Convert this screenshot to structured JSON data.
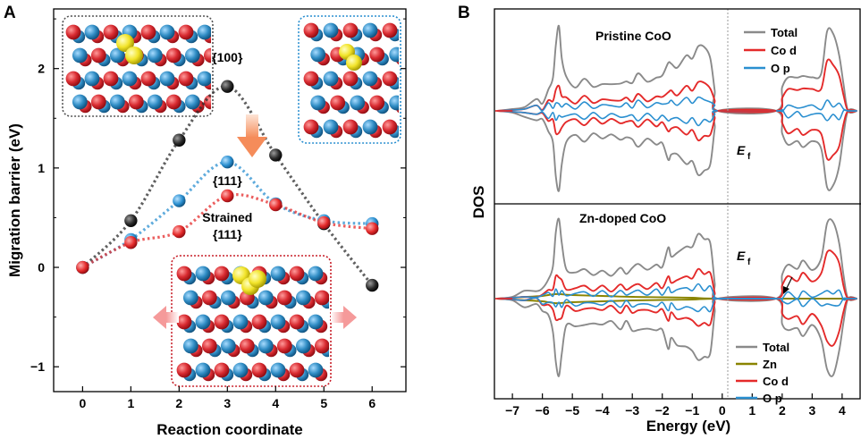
{
  "colors": {
    "black": "#2a2a2a",
    "blue": "#2a8fd0",
    "red": "#e42a2a",
    "gray": "#8a8a8a",
    "olive": "#8a8400",
    "oxygen": "#d82a30",
    "cobalt": "#2f8cc4",
    "lithium": "#f2e42a",
    "arrow_orange": "#f5a070",
    "arrow_pink": "#f7b2b2"
  },
  "chart_data": [
    {
      "panel": "A",
      "type": "line",
      "xlabel": "Reaction coordinate",
      "ylabel": "Migration barrier (eV)",
      "xlim": [
        -0.6,
        6.7
      ],
      "ylim": [
        -1.25,
        2.6
      ],
      "xticks": [
        "0",
        "1",
        "2",
        "3",
        "4",
        "5",
        "6"
      ],
      "yticks": [
        "-1",
        "0",
        "1",
        "2"
      ],
      "ytick_labels": [
        "−1",
        "0",
        "1",
        "2"
      ],
      "x": [
        0,
        1,
        2,
        3,
        4,
        5,
        6
      ],
      "series": [
        {
          "key": "s100",
          "color": "black",
          "values": [
            0.0,
            0.47,
            1.28,
            1.82,
            1.13,
            0.44,
            -0.18
          ]
        },
        {
          "key": "s111",
          "color": "blue",
          "values": [
            0.0,
            0.28,
            0.67,
            1.06,
            0.64,
            0.47,
            0.44
          ]
        },
        {
          "key": "strained",
          "color": "red",
          "values": [
            0.0,
            0.25,
            0.36,
            0.72,
            0.63,
            0.45,
            0.39
          ]
        }
      ],
      "annotations": [
        {
          "text": "{100}",
          "x": 3,
          "y": 2.07
        },
        {
          "text": "{111}",
          "x": 3,
          "y": 0.83
        },
        {
          "text": "Strained",
          "x": 3,
          "y": 0.46
        },
        {
          "text": "{111}",
          "x": 3,
          "y": 0.29
        }
      ]
    },
    {
      "panel": "B",
      "type": "area",
      "xlabel": "Energy (eV)",
      "ylabel": "DOS",
      "xlim": [
        -7.6,
        4.6
      ],
      "xticks": [
        "-7",
        "-6",
        "-5",
        "-4",
        "-3",
        "-2",
        "-1",
        "0",
        "1",
        "2",
        "3",
        "4"
      ],
      "xtick_labels": [
        "−7",
        "−6",
        "−5",
        "−4",
        "−3",
        "−2",
        "−1",
        "0",
        "1",
        "2",
        "3",
        "4"
      ],
      "fermi_label": "E",
      "fermi_subscript": "f",
      "facets": [
        {
          "title": "Pristine CoO",
          "legend": [
            {
              "label": "Total",
              "color": "gray"
            },
            {
              "label": "Co d",
              "color": "red"
            },
            {
              "label": "O p",
              "color": "blue"
            }
          ]
        },
        {
          "title": "Zn-doped CoO",
          "legend": [
            {
              "label": "Total",
              "color": "gray"
            },
            {
              "label": "Zn",
              "color": "olive"
            },
            {
              "label": "Co d",
              "color": "red"
            },
            {
              "label": "O p",
              "color": "blue"
            }
          ]
        }
      ],
      "profiles": {
        "total": [
          [
            -7.5,
            0
          ],
          [
            -7.0,
            0.02
          ],
          [
            -6.6,
            0.06
          ],
          [
            -6.2,
            0.1
          ],
          [
            -6.0,
            0.12
          ],
          [
            -5.8,
            0.2
          ],
          [
            -5.65,
            0.4
          ],
          [
            -5.55,
            0.72
          ],
          [
            -5.45,
            0.95
          ],
          [
            -5.35,
            0.6
          ],
          [
            -5.2,
            0.35
          ],
          [
            -4.9,
            0.3
          ],
          [
            -4.6,
            0.32
          ],
          [
            -4.3,
            0.3
          ],
          [
            -4.0,
            0.28
          ],
          [
            -3.7,
            0.3
          ],
          [
            -3.4,
            0.32
          ],
          [
            -3.2,
            0.3
          ],
          [
            -3.0,
            0.35
          ],
          [
            -2.8,
            0.38
          ],
          [
            -2.5,
            0.36
          ],
          [
            -2.2,
            0.35
          ],
          [
            -2.0,
            0.4
          ],
          [
            -1.8,
            0.55
          ],
          [
            -1.7,
            0.5
          ],
          [
            -1.5,
            0.52
          ],
          [
            -1.2,
            0.58
          ],
          [
            -1.0,
            0.62
          ],
          [
            -0.8,
            0.7
          ],
          [
            -0.6,
            0.72
          ],
          [
            -0.4,
            0.6
          ],
          [
            -0.25,
            0.2
          ],
          [
            -0.15,
            0
          ],
          [
            1.8,
            0
          ],
          [
            2.0,
            0.3
          ],
          [
            2.2,
            0.35
          ],
          [
            2.5,
            0.38
          ],
          [
            2.7,
            0.4
          ],
          [
            3.0,
            0.35
          ],
          [
            3.3,
            0.45
          ],
          [
            3.5,
            0.85
          ],
          [
            3.7,
            0.9
          ],
          [
            3.9,
            0.6
          ],
          [
            4.05,
            0.3
          ],
          [
            4.2,
            0
          ],
          [
            4.5,
            0
          ]
        ],
        "cod": [
          [
            -7.5,
            0
          ],
          [
            -7.0,
            0.01
          ],
          [
            -6.6,
            0.02
          ],
          [
            -6.2,
            0.03
          ],
          [
            -6.0,
            0.05
          ],
          [
            -5.8,
            0.08
          ],
          [
            -5.65,
            0.14
          ],
          [
            -5.55,
            0.22
          ],
          [
            -5.45,
            0.28
          ],
          [
            -5.35,
            0.18
          ],
          [
            -5.2,
            0.12
          ],
          [
            -4.9,
            0.12
          ],
          [
            -4.6,
            0.13
          ],
          [
            -4.3,
            0.12
          ],
          [
            -4.0,
            0.11
          ],
          [
            -3.7,
            0.12
          ],
          [
            -3.4,
            0.13
          ],
          [
            -3.2,
            0.12
          ],
          [
            -3.0,
            0.14
          ],
          [
            -2.8,
            0.15
          ],
          [
            -2.5,
            0.14
          ],
          [
            -2.2,
            0.14
          ],
          [
            -2.0,
            0.16
          ],
          [
            -1.8,
            0.22
          ],
          [
            -1.7,
            0.2
          ],
          [
            -1.5,
            0.21
          ],
          [
            -1.2,
            0.24
          ],
          [
            -1.0,
            0.26
          ],
          [
            -0.8,
            0.3
          ],
          [
            -0.6,
            0.32
          ],
          [
            -0.4,
            0.26
          ],
          [
            -0.25,
            0.09
          ],
          [
            -0.15,
            0
          ],
          [
            1.8,
            0
          ],
          [
            2.0,
            0.18
          ],
          [
            2.2,
            0.22
          ],
          [
            2.5,
            0.24
          ],
          [
            2.7,
            0.26
          ],
          [
            3.0,
            0.22
          ],
          [
            3.3,
            0.28
          ],
          [
            3.5,
            0.52
          ],
          [
            3.7,
            0.55
          ],
          [
            3.9,
            0.37
          ],
          [
            4.05,
            0.18
          ],
          [
            4.2,
            0
          ],
          [
            4.5,
            0
          ]
        ],
        "op": [
          [
            -7.5,
            0
          ],
          [
            -7.0,
            0.01
          ],
          [
            -6.6,
            0.02
          ],
          [
            -6.2,
            0.03
          ],
          [
            -6.0,
            0.04
          ],
          [
            -5.8,
            0.05
          ],
          [
            -5.65,
            0.06
          ],
          [
            -5.55,
            0.07
          ],
          [
            -5.45,
            0.08
          ],
          [
            -5.35,
            0.06
          ],
          [
            -5.2,
            0.05
          ],
          [
            -4.9,
            0.06
          ],
          [
            -4.6,
            0.06
          ],
          [
            -4.3,
            0.06
          ],
          [
            -4.0,
            0.05
          ],
          [
            -3.7,
            0.06
          ],
          [
            -3.4,
            0.06
          ],
          [
            -3.2,
            0.06
          ],
          [
            -3.0,
            0.07
          ],
          [
            -2.8,
            0.08
          ],
          [
            -2.5,
            0.07
          ],
          [
            -2.2,
            0.07
          ],
          [
            -2.0,
            0.08
          ],
          [
            -1.8,
            0.1
          ],
          [
            -1.7,
            0.09
          ],
          [
            -1.5,
            0.1
          ],
          [
            -1.2,
            0.11
          ],
          [
            -1.0,
            0.12
          ],
          [
            -0.8,
            0.13
          ],
          [
            -0.6,
            0.13
          ],
          [
            -0.4,
            0.11
          ],
          [
            -0.25,
            0.04
          ],
          [
            -0.15,
            0
          ],
          [
            1.8,
            0
          ],
          [
            2.0,
            0.03
          ],
          [
            2.2,
            0.04
          ],
          [
            2.5,
            0.04
          ],
          [
            2.7,
            0.05
          ],
          [
            3.0,
            0.04
          ],
          [
            3.3,
            0.05
          ],
          [
            3.5,
            0.08
          ],
          [
            3.7,
            0.08
          ],
          [
            3.9,
            0.06
          ],
          [
            4.05,
            0.03
          ],
          [
            4.2,
            0
          ],
          [
            4.5,
            0
          ]
        ],
        "zn": [
          [
            -7.5,
            0
          ],
          [
            -7.0,
            0.01
          ],
          [
            -6.5,
            0.02
          ],
          [
            -6.0,
            0.03
          ],
          [
            -5.8,
            0.04
          ],
          [
            -5.6,
            0.05
          ],
          [
            -5.4,
            0.05
          ],
          [
            -5.0,
            0.04
          ],
          [
            -4.0,
            0.03
          ],
          [
            -3.0,
            0.02
          ],
          [
            -2.0,
            0.015
          ],
          [
            -1.0,
            0.01
          ],
          [
            0.0,
            0
          ],
          [
            4.5,
            0
          ]
        ]
      }
    }
  ]
}
